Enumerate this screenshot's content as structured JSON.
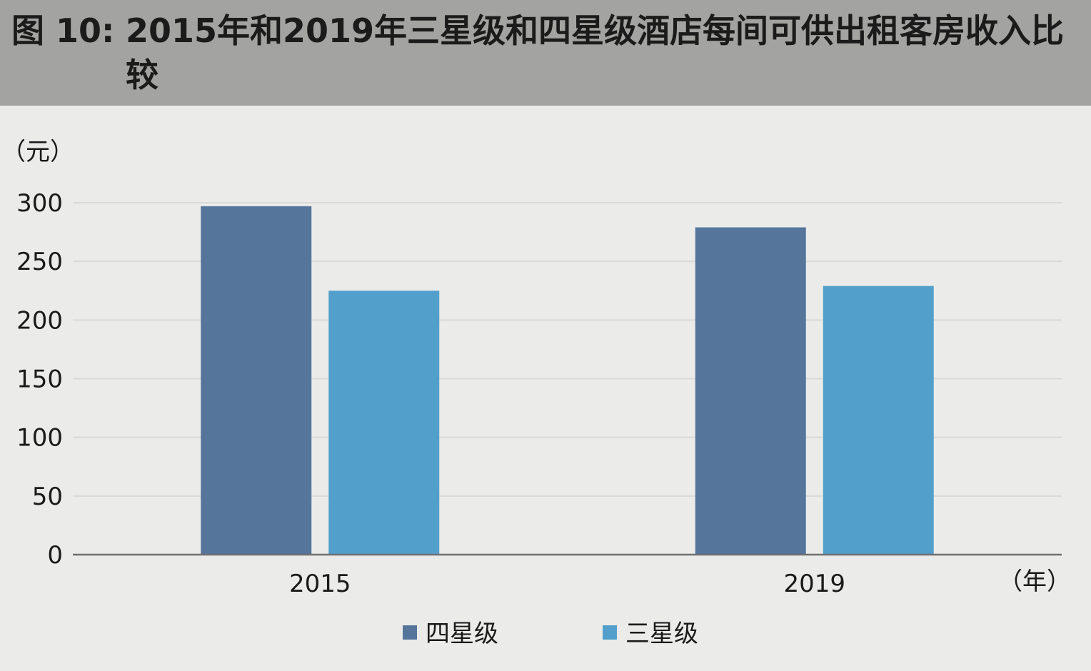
{
  "figure": {
    "label": "图 10:",
    "title": "2015年和2019年三星级和四星级酒店每间可供出租客房收入比较"
  },
  "chart_data": {
    "type": "bar",
    "title": "2015年和2019年三星级和四星级酒店每间可供出租客房收入比较",
    "categories": [
      "2015",
      "2019"
    ],
    "series": [
      {
        "name": "四星级",
        "color": "#55759b",
        "values": [
          297,
          279
        ]
      },
      {
        "name": "三星级",
        "color": "#539fcb",
        "values": [
          225,
          229
        ]
      }
    ],
    "y_unit": "（元）",
    "x_unit": "（年）",
    "ylim": [
      0,
      300
    ],
    "yticks": [
      0,
      50,
      100,
      150,
      200,
      250,
      300
    ],
    "grid": true,
    "legend_position": "bottom"
  }
}
